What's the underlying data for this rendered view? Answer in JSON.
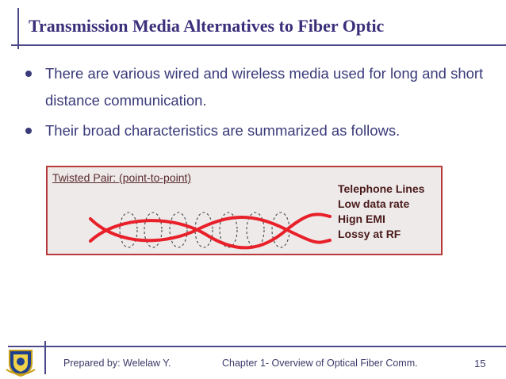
{
  "slide": {
    "title": "Transmission Media Alternatives to Fiber Optic",
    "bullets": [
      "There are various wired and wireless media used for long and short distance communication.",
      "Their broad characteristics are summarized as follows."
    ],
    "figure": {
      "label": "Twisted Pair: (point-to-point)",
      "specs": [
        "Telephone Lines",
        "Low data rate",
        "Hign EMI",
        "Lossy at RF"
      ],
      "colors": {
        "border": "#b83a3a",
        "wire": "#e8202a",
        "background": "#eeeaea"
      }
    }
  },
  "footer": {
    "author": "Prepared by: Welelaw Y.",
    "chapter": "Chapter 1- Overview of Optical Fiber Comm.",
    "page_number": "15"
  },
  "icons": {
    "logo": "university-crest-icon"
  },
  "colors": {
    "title": "#3a2f7a",
    "text": "#3a3a7a",
    "rule": "#4a4a8a"
  }
}
